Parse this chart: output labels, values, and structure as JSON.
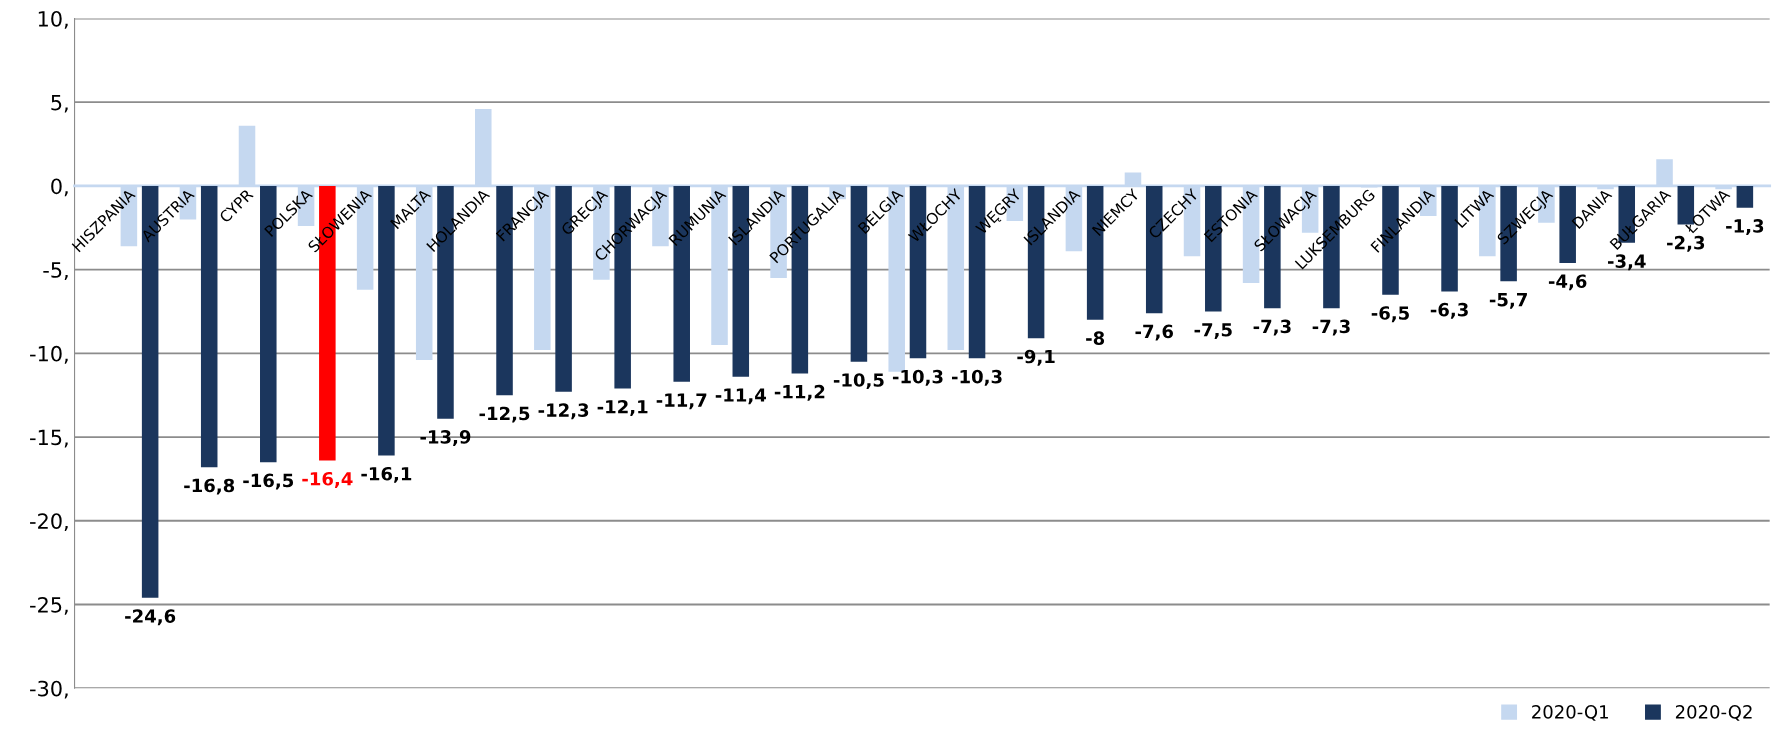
{
  "chart_data": {
    "type": "bar",
    "categories": [
      "HISZPANIA",
      "AUSTRIA",
      "CYPR",
      "POLSKA",
      "SŁOWENIA",
      "MALTA",
      "HOLANDIA",
      "FRANCJA",
      "GRECJA",
      "CHORWACJA",
      "RUMUNIA",
      "ISLANDIA",
      "PORTUGALIA",
      "BELGIA",
      "WŁOCHY",
      "WĘGRY",
      "ISLANDIA",
      "NIEMCY",
      "CZECHY",
      "ESTONIA",
      "SŁOWACJA",
      "LUKSEMBURG",
      "FINLANDIA",
      "LITWA",
      "SZWECJA",
      "DANIA",
      "BUŁGARIA",
      "ŁOTWA"
    ],
    "series": [
      {
        "name": "2020-Q1",
        "color": "#c5d8f0",
        "values": [
          -3.6,
          -2.0,
          3.6,
          -2.4,
          -6.2,
          -10.4,
          4.6,
          -9.8,
          -5.6,
          -3.6,
          -9.5,
          -5.5,
          -0.8,
          -11.1,
          -9.8,
          -2.1,
          -3.9,
          0.8,
          -4.2,
          -5.8,
          -2.8,
          -0.1,
          -1.8,
          -4.2,
          -2.2,
          -0.2,
          1.6,
          -0.2
        ]
      },
      {
        "name": "2020-Q2",
        "color": "#1b365d",
        "colors": [
          "#1b365d",
          "#1b365d",
          "#1b365d",
          "#ff0000",
          "#1b365d",
          "#1b365d",
          "#1b365d",
          "#1b365d",
          "#1b365d",
          "#1b365d",
          "#1b365d",
          "#1b365d",
          "#1b365d",
          "#1b365d",
          "#1b365d",
          "#1b365d",
          "#1b365d",
          "#1b365d",
          "#1b365d",
          "#1b365d",
          "#1b365d",
          "#1b365d",
          "#1b365d",
          "#1b365d",
          "#1b365d",
          "#1b365d",
          "#1b365d",
          "#1b365d"
        ],
        "values": [
          -24.6,
          -16.8,
          -16.5,
          -16.4,
          -16.1,
          -13.9,
          -12.5,
          -12.3,
          -12.1,
          -11.7,
          -11.4,
          -11.2,
          -10.5,
          -10.3,
          -10.3,
          -9.1,
          -8,
          -7.6,
          -7.5,
          -7.3,
          -7.3,
          -6.5,
          -6.3,
          -5.7,
          -4.6,
          -3.4,
          -2.3,
          -1.3
        ],
        "value_labels": [
          "-24,6",
          "-16,8",
          "-16,5",
          "-16,4",
          "-16,1",
          "-13,9",
          "-12,5",
          "-12,3",
          "-12,1",
          "-11,7",
          "-11,4",
          "-11,2",
          "-10,5",
          "-10,3",
          "-10,3",
          "-9,1",
          "-8",
          "-7,6",
          "-7,5",
          "-7,3",
          "-7,3",
          "-6,5",
          "-6,3",
          "-5,7",
          "-4,6",
          "-3,4",
          "-2,3",
          "-1,3"
        ]
      }
    ],
    "ylim": [
      -30,
      10
    ],
    "yticks": [
      {
        "value": -30,
        "label": "-30,"
      },
      {
        "value": -25,
        "label": "-25,"
      },
      {
        "value": -20,
        "label": "-20,"
      },
      {
        "value": -15,
        "label": "-15,"
      },
      {
        "value": -10,
        "label": "-10,"
      },
      {
        "value": -5,
        "label": "-5,"
      },
      {
        "value": 0,
        "label": "0,"
      },
      {
        "value": 5,
        "label": "5,"
      },
      {
        "value": 10,
        "label": "10,"
      }
    ],
    "grid": "y",
    "legend": "bottom right"
  }
}
